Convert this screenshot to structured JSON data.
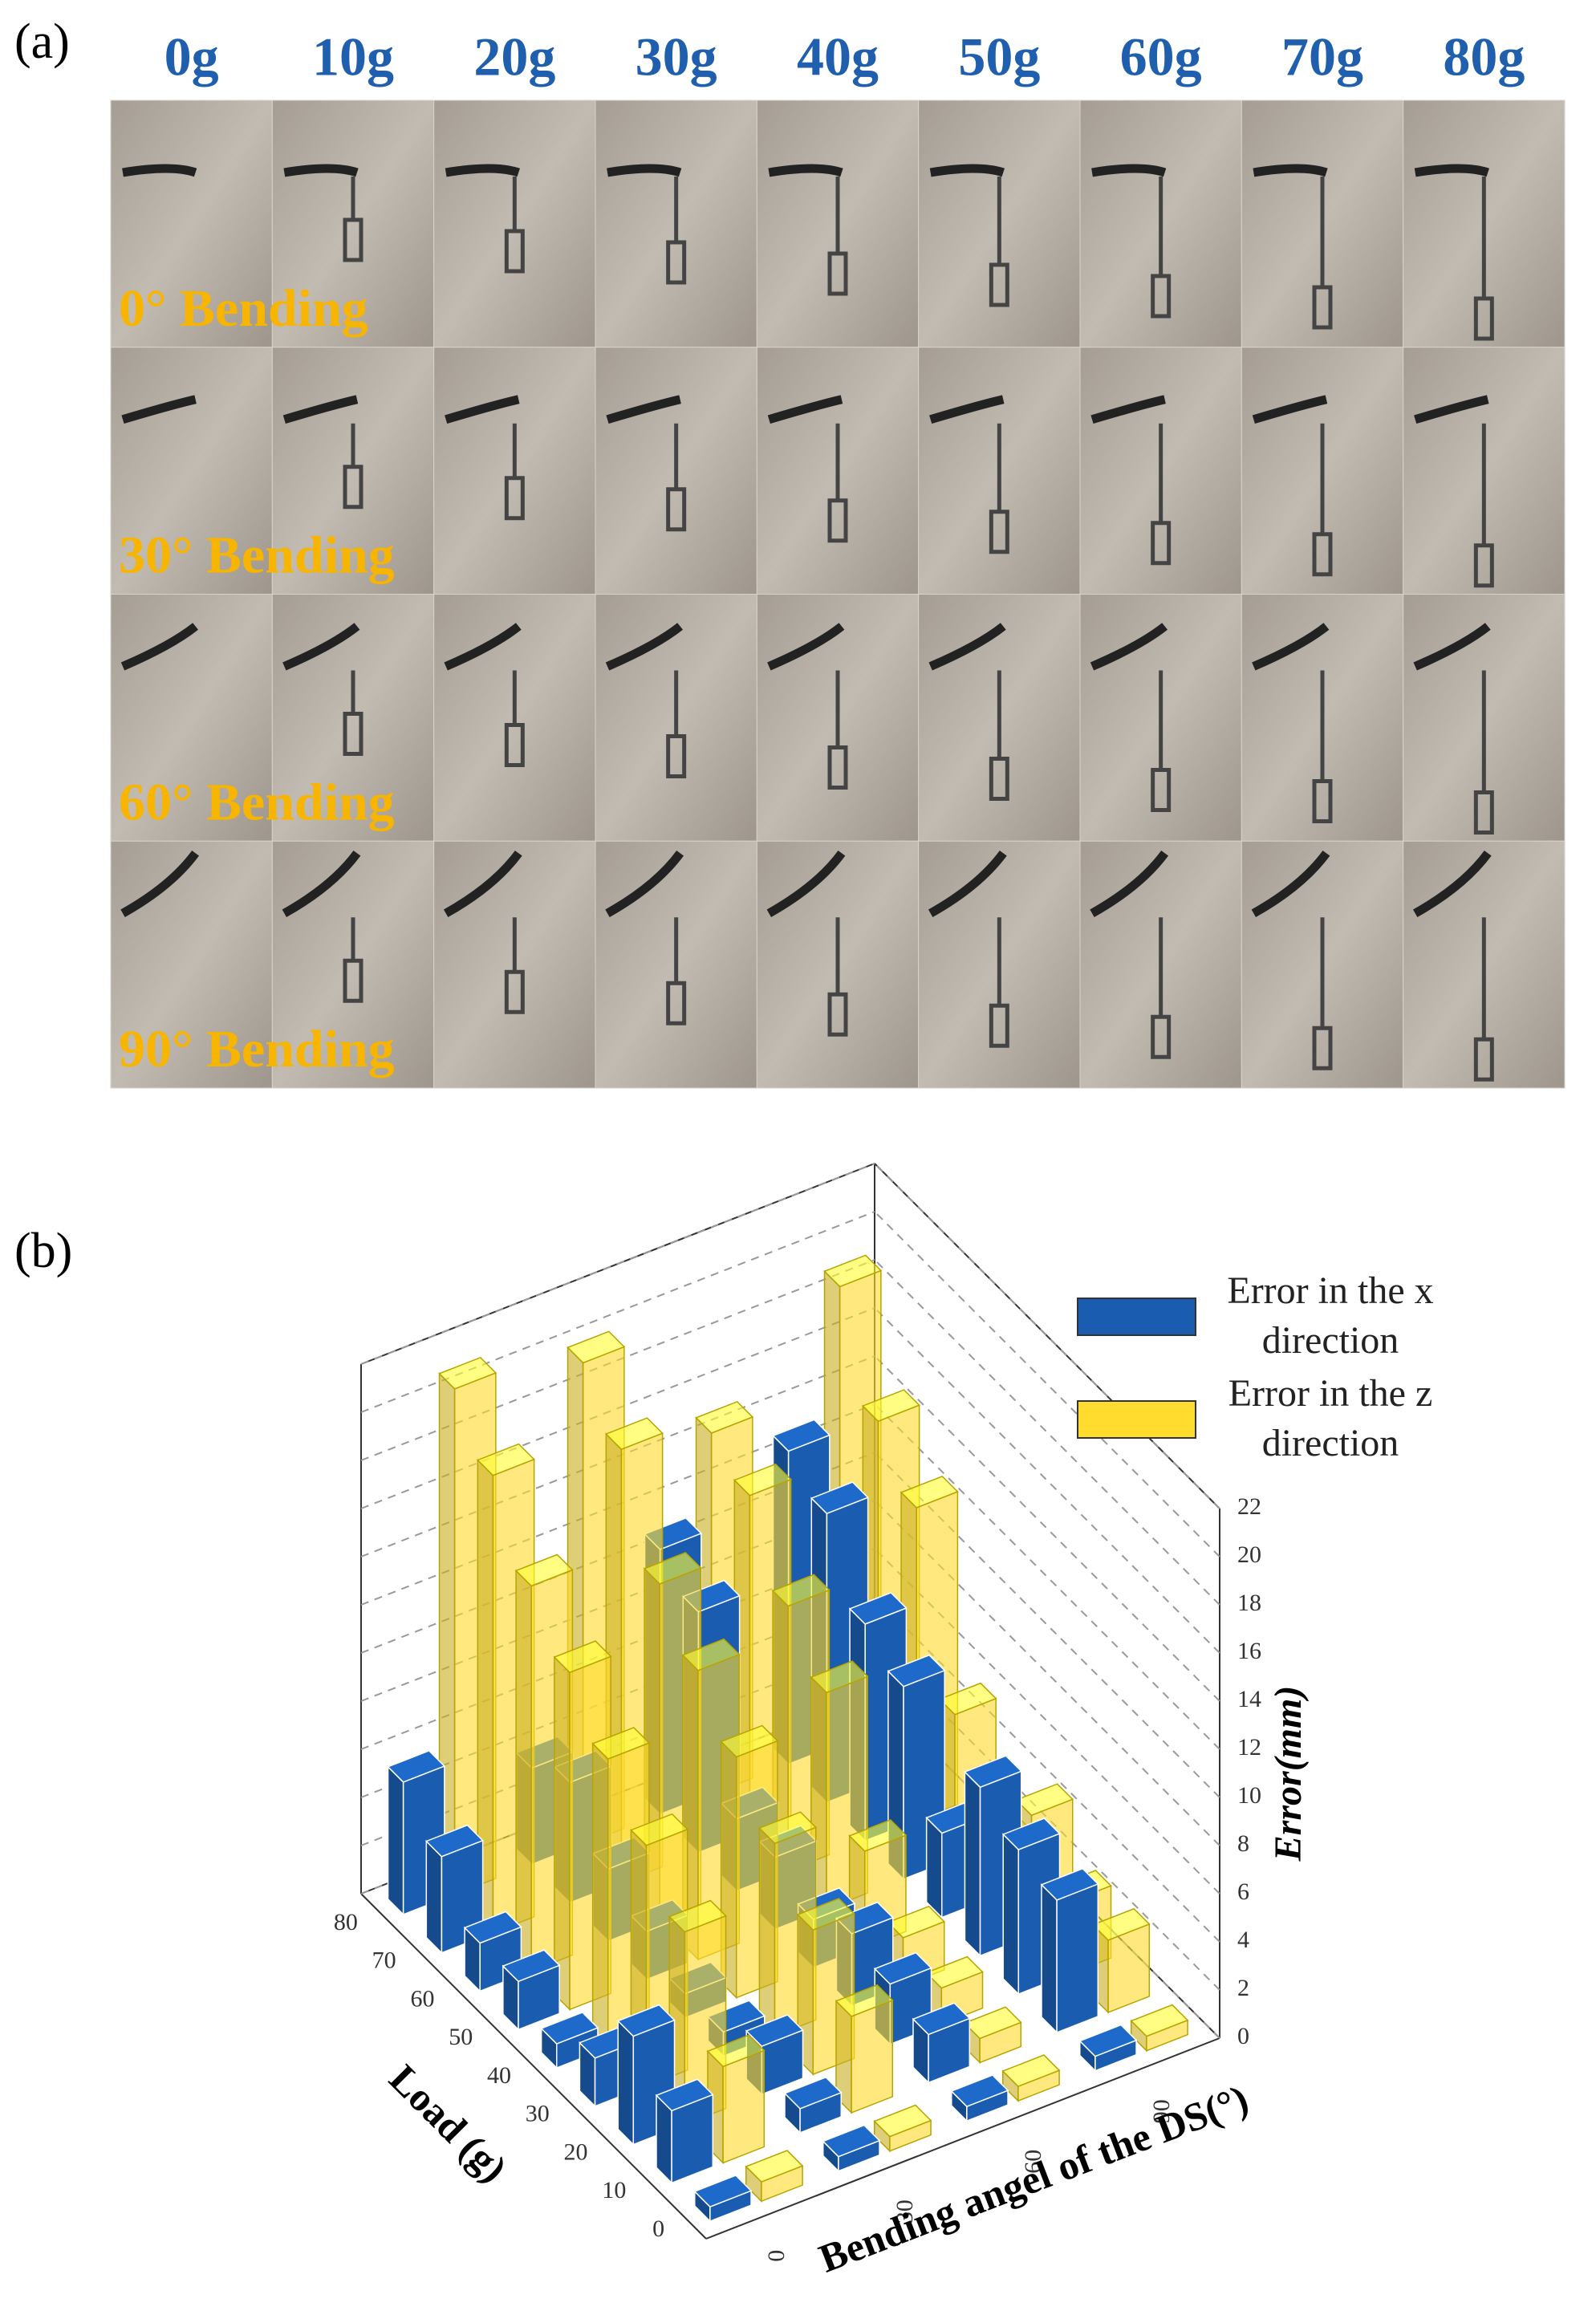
{
  "panel_a": {
    "label": "(a)",
    "columns": [
      "0g",
      "10g",
      "20g",
      "30g",
      "40g",
      "50g",
      "60g",
      "70g",
      "80g"
    ],
    "rows": [
      "0° Bending",
      "30° Bending",
      "60° Bending",
      "90° Bending"
    ]
  },
  "chart_data": {
    "type": "bar3d",
    "panel_label": "(b)",
    "categories": [
      0,
      10,
      20,
      30,
      40,
      50,
      60,
      70,
      80
    ],
    "angles": [
      0,
      30,
      60,
      90
    ],
    "xlabel": "Load (g)",
    "ylabel": "Bending angel of the DS(°)",
    "zlabel": "Error(mm)",
    "zlim": [
      0,
      22
    ],
    "zticks": [
      0,
      2,
      4,
      6,
      8,
      10,
      12,
      14,
      16,
      18,
      20,
      22
    ],
    "grid": true,
    "series": [
      {
        "name": "Error in the x direction",
        "color": "#1a5cb0",
        "values": [
          [
            0.6,
            3,
            4.5,
            2,
            1,
            2,
            2,
            4,
            5.5
          ],
          [
            0.6,
            1,
            2,
            1,
            1,
            2,
            3,
            5,
            4
          ],
          [
            0.6,
            2,
            2.5,
            3,
            2,
            3,
            3,
            10,
            11
          ],
          [
            0.6,
            5.5,
            6,
            7,
            3.5,
            8,
            9,
            12,
            13
          ]
        ]
      },
      {
        "name": "Error in the z direction",
        "color": "#ffdc2e",
        "values": [
          [
            0.8,
            4,
            8,
            10,
            12,
            14,
            16,
            19,
            21
          ],
          [
            0.6,
            4,
            6,
            8,
            10,
            12,
            14,
            18,
            20
          ],
          [
            0.6,
            1,
            1.5,
            2,
            4,
            9,
            11,
            14,
            15
          ],
          [
            0.6,
            3,
            3,
            5,
            2,
            6,
            13,
            15,
            19
          ]
        ]
      }
    ]
  }
}
